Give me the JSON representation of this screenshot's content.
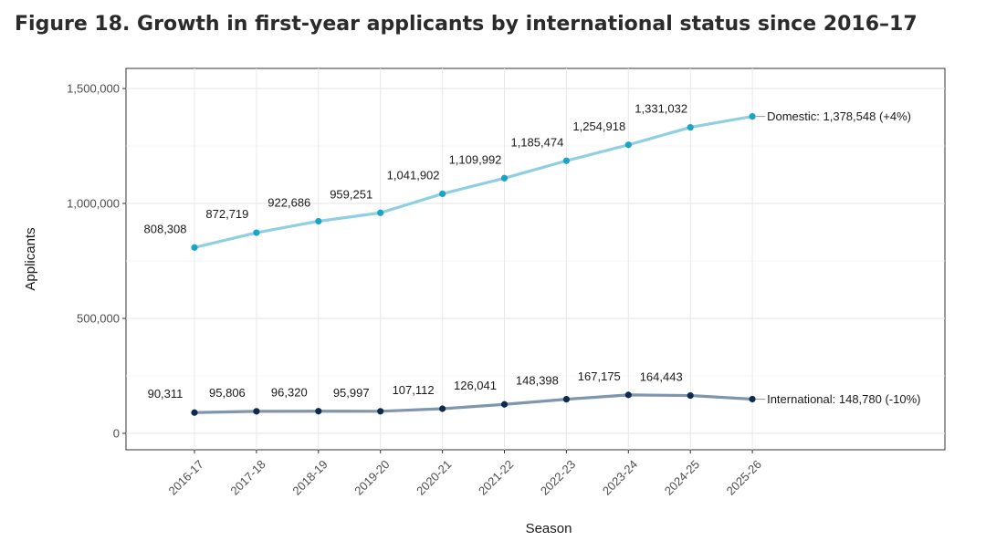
{
  "title": "Figure 18. Growth in first-year applicants by international status since 2016–17",
  "chart_data": {
    "type": "line",
    "xlabel": "Season",
    "ylabel": "Applicants",
    "categories": [
      "2016-17",
      "2017-18",
      "2018-19",
      "2019-20",
      "2020-21",
      "2021-22",
      "2022-23",
      "2023-24",
      "2024-25",
      "2025-26"
    ],
    "ylim": [
      0,
      1500000
    ],
    "yticks": [
      0,
      500000,
      1000000,
      1500000
    ],
    "ytick_labels": [
      "0",
      "500,000",
      "1,000,000",
      "1,500,000"
    ],
    "grid": true,
    "series": [
      {
        "key": "domestic",
        "values": [
          808308,
          872719,
          922686,
          959251,
          1041902,
          1109992,
          1185474,
          1254918,
          1331032,
          1378548
        ],
        "point_labels": [
          "808,308",
          "872,719",
          "922,686",
          "959,251",
          "1,041,902",
          "1,109,992",
          "1,185,474",
          "1,254,918",
          "1,331,032"
        ],
        "end_label": "Domestic: 1,378,548 (+4%)",
        "line_color": "#8ecfe2",
        "point_color": "#1aa3c8"
      },
      {
        "key": "international",
        "values": [
          90311,
          95806,
          96320,
          95997,
          107112,
          126041,
          148398,
          167175,
          164443,
          148780
        ],
        "point_labels": [
          "90,311",
          "95,806",
          "96,320",
          "95,997",
          "107,112",
          "126,041",
          "148,398",
          "167,175",
          "164,443"
        ],
        "end_label": "International: 148,780 (-10%)",
        "line_color": "#7f96ad",
        "point_color": "#0d2a4f"
      }
    ]
  }
}
